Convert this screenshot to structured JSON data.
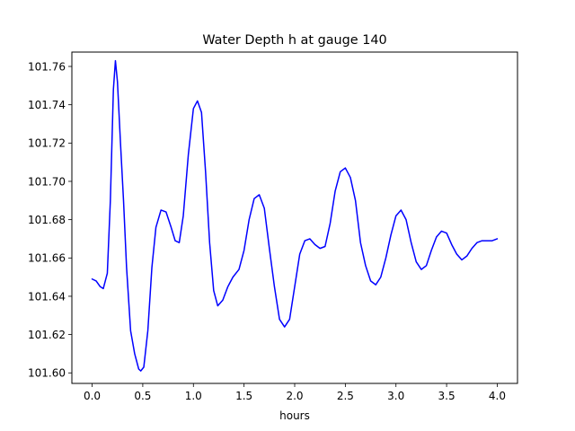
{
  "chart_data": {
    "type": "line",
    "title": "Water Depth h at gauge 140",
    "xlabel": "hours",
    "ylabel": "",
    "xlim": [
      -0.2,
      4.2
    ],
    "ylim": [
      101.5945,
      101.7675
    ],
    "xticks": [
      0.0,
      0.5,
      1.0,
      1.5,
      2.0,
      2.5,
      3.0,
      3.5,
      4.0
    ],
    "xtick_labels": [
      "0.0",
      "0.5",
      "1.0",
      "1.5",
      "2.0",
      "2.5",
      "3.0",
      "3.5",
      "4.0"
    ],
    "yticks": [
      101.6,
      101.62,
      101.64,
      101.66,
      101.68,
      101.7,
      101.72,
      101.74,
      101.76
    ],
    "ytick_labels": [
      "101.60",
      "101.62",
      "101.64",
      "101.66",
      "101.68",
      "101.70",
      "101.72",
      "101.74",
      "101.76"
    ],
    "grid": false,
    "legend": "none",
    "series": [
      {
        "color": "#0000ff",
        "points": [
          [
            0.0,
            101.649
          ],
          [
            0.04,
            101.648
          ],
          [
            0.08,
            101.645
          ],
          [
            0.11,
            101.644
          ],
          [
            0.15,
            101.652
          ],
          [
            0.18,
            101.69
          ],
          [
            0.21,
            101.748
          ],
          [
            0.23,
            101.763
          ],
          [
            0.25,
            101.752
          ],
          [
            0.28,
            101.72
          ],
          [
            0.31,
            101.69
          ],
          [
            0.34,
            101.655
          ],
          [
            0.38,
            101.622
          ],
          [
            0.42,
            101.61
          ],
          [
            0.46,
            101.602
          ],
          [
            0.48,
            101.601
          ],
          [
            0.51,
            101.603
          ],
          [
            0.55,
            101.622
          ],
          [
            0.59,
            101.655
          ],
          [
            0.63,
            101.676
          ],
          [
            0.68,
            101.685
          ],
          [
            0.73,
            101.684
          ],
          [
            0.78,
            101.676
          ],
          [
            0.82,
            101.669
          ],
          [
            0.86,
            101.668
          ],
          [
            0.9,
            101.682
          ],
          [
            0.95,
            101.714
          ],
          [
            1.0,
            101.738
          ],
          [
            1.04,
            101.742
          ],
          [
            1.08,
            101.736
          ],
          [
            1.12,
            101.705
          ],
          [
            1.16,
            101.668
          ],
          [
            1.2,
            101.643
          ],
          [
            1.24,
            101.635
          ],
          [
            1.29,
            101.638
          ],
          [
            1.34,
            101.645
          ],
          [
            1.39,
            101.65
          ],
          [
            1.45,
            101.654
          ],
          [
            1.5,
            101.664
          ],
          [
            1.55,
            101.68
          ],
          [
            1.6,
            101.691
          ],
          [
            1.65,
            101.693
          ],
          [
            1.7,
            101.686
          ],
          [
            1.75,
            101.665
          ],
          [
            1.8,
            101.645
          ],
          [
            1.85,
            101.628
          ],
          [
            1.9,
            101.624
          ],
          [
            1.95,
            101.628
          ],
          [
            2.0,
            101.645
          ],
          [
            2.05,
            101.662
          ],
          [
            2.1,
            101.669
          ],
          [
            2.15,
            101.67
          ],
          [
            2.2,
            101.667
          ],
          [
            2.25,
            101.665
          ],
          [
            2.3,
            101.666
          ],
          [
            2.35,
            101.678
          ],
          [
            2.4,
            101.695
          ],
          [
            2.45,
            101.705
          ],
          [
            2.5,
            101.707
          ],
          [
            2.55,
            101.702
          ],
          [
            2.6,
            101.69
          ],
          [
            2.65,
            101.668
          ],
          [
            2.7,
            101.656
          ],
          [
            2.75,
            101.648
          ],
          [
            2.8,
            101.646
          ],
          [
            2.85,
            101.65
          ],
          [
            2.9,
            101.66
          ],
          [
            2.95,
            101.672
          ],
          [
            3.0,
            101.682
          ],
          [
            3.05,
            101.685
          ],
          [
            3.1,
            101.68
          ],
          [
            3.15,
            101.668
          ],
          [
            3.2,
            101.658
          ],
          [
            3.25,
            101.654
          ],
          [
            3.3,
            101.656
          ],
          [
            3.35,
            101.664
          ],
          [
            3.4,
            101.671
          ],
          [
            3.45,
            101.674
          ],
          [
            3.5,
            101.673
          ],
          [
            3.55,
            101.667
          ],
          [
            3.6,
            101.662
          ],
          [
            3.65,
            101.659
          ],
          [
            3.7,
            101.661
          ],
          [
            3.75,
            101.665
          ],
          [
            3.8,
            101.668
          ],
          [
            3.85,
            101.669
          ],
          [
            3.9,
            101.669
          ],
          [
            3.95,
            101.669
          ],
          [
            4.0,
            101.67
          ]
        ]
      }
    ]
  }
}
